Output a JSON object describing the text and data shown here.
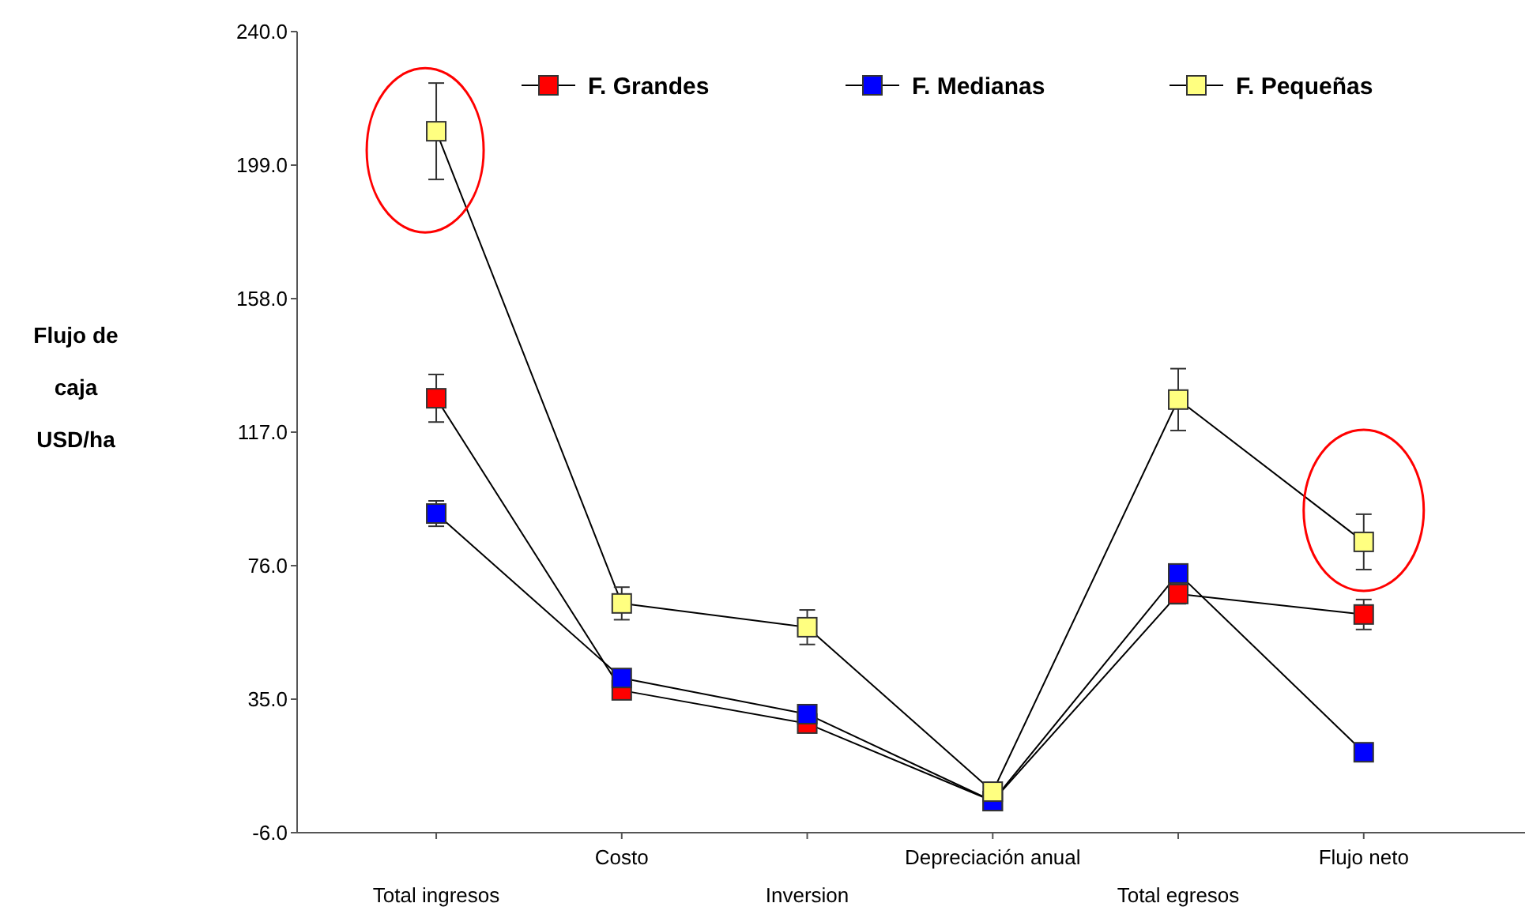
{
  "chart_data": {
    "type": "line",
    "ylabel": "Flujo de caja USD/ha",
    "categories": [
      "Total ingresos",
      "Costo",
      "Inversion",
      "Depreciación anual",
      "Total egresos",
      "Flujo neto"
    ],
    "series": [
      {
        "name": "F. Grandes",
        "color": "#ff0000",
        "values": [
          127.4,
          37.7,
          27.5,
          3.7,
          67.3,
          61
        ],
        "errors": [
          7.3,
          1.5,
          1,
          null,
          3,
          4.6
        ]
      },
      {
        "name": "F. Medianas",
        "color": "#0000ff",
        "values": [
          92,
          41.5,
          30.4,
          3.7,
          73.6,
          18.7
        ],
        "errors": [
          3.9,
          null,
          null,
          null,
          2,
          null
        ]
      },
      {
        "name": "F. Pequeñas",
        "color": "#ffff80",
        "values": [
          209.4,
          64.4,
          57.1,
          6.6,
          127,
          83.3
        ],
        "errors": [
          14.8,
          5,
          5.3,
          null,
          9.5,
          8.5
        ]
      }
    ],
    "ylim": [
      -6,
      240
    ],
    "yticks": [
      {
        "value": -6,
        "label": "-6.0"
      },
      {
        "value": 35,
        "label": "35.0"
      },
      {
        "value": 76,
        "label": "76.0"
      },
      {
        "value": 117,
        "label": "117.0"
      },
      {
        "value": 158,
        "label": "158.0"
      },
      {
        "value": 199,
        "label": "199.0"
      },
      {
        "value": 240,
        "label": "240.0"
      }
    ],
    "grid": false,
    "legend": "top right",
    "marker": "square",
    "line_style": "solid"
  }
}
